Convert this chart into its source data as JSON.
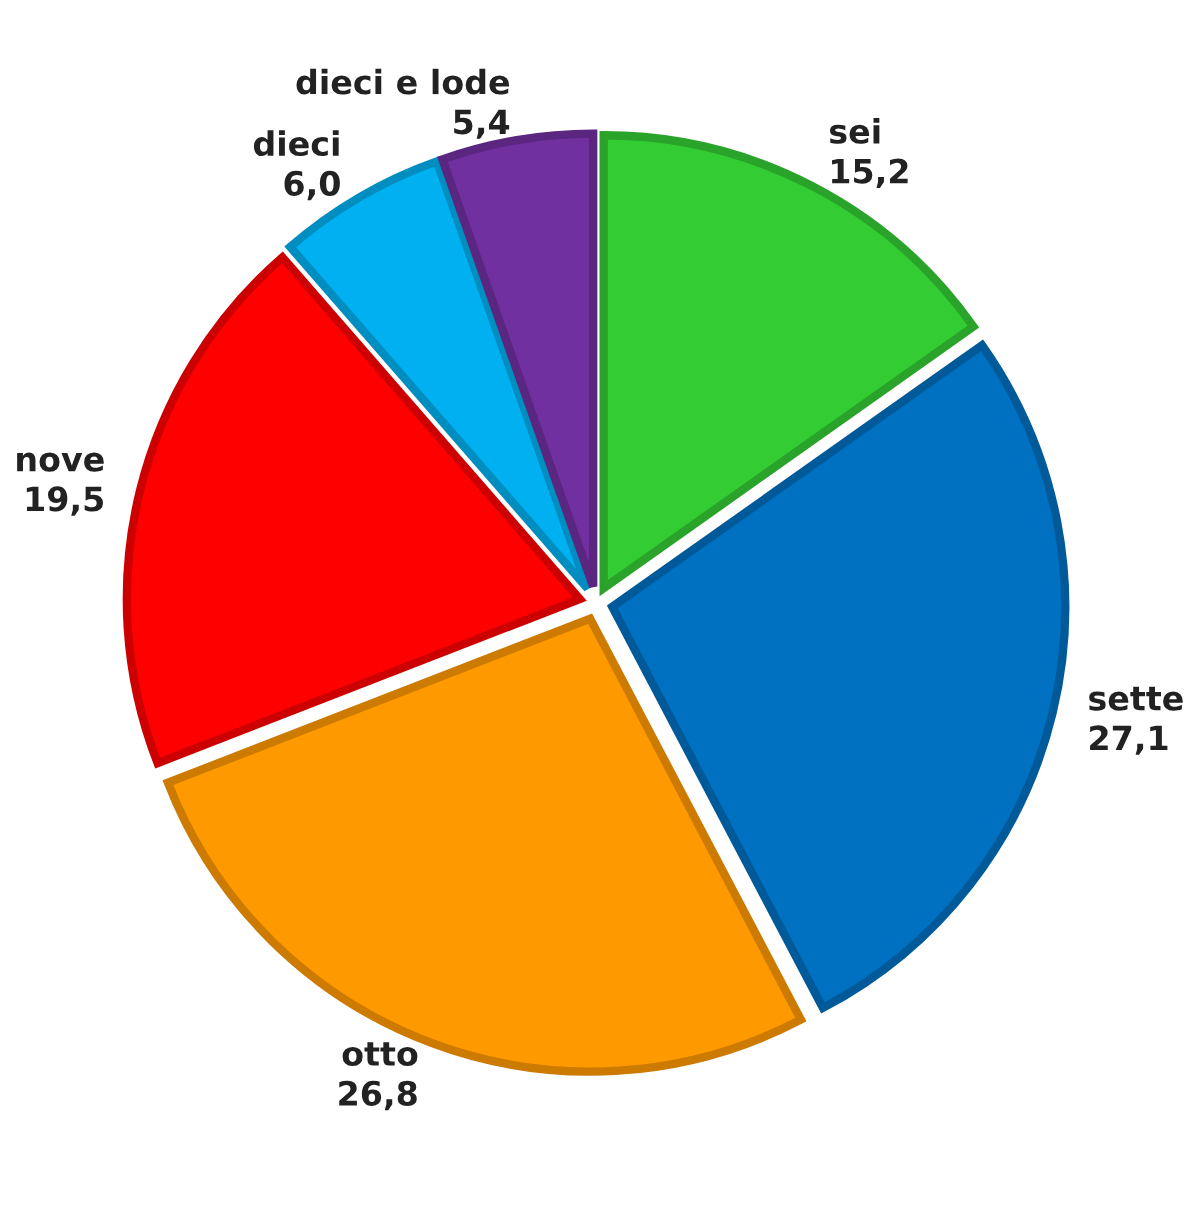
{
  "chart_data": {
    "type": "pie",
    "categories": [
      "sei",
      "sette",
      "otto",
      "nove",
      "dieci",
      "dieci e lode"
    ],
    "values": [
      15.2,
      27.1,
      26.8,
      19.5,
      6.0,
      5.4
    ],
    "value_labels": [
      "15,2",
      "27,1",
      "26,8",
      "19,5",
      "6,0",
      "5,4"
    ],
    "colors": [
      "#33cc33",
      "#0070c0",
      "#ff9900",
      "#ff0000",
      "#00b0f0",
      "#7030a0"
    ],
    "legend": false
  }
}
